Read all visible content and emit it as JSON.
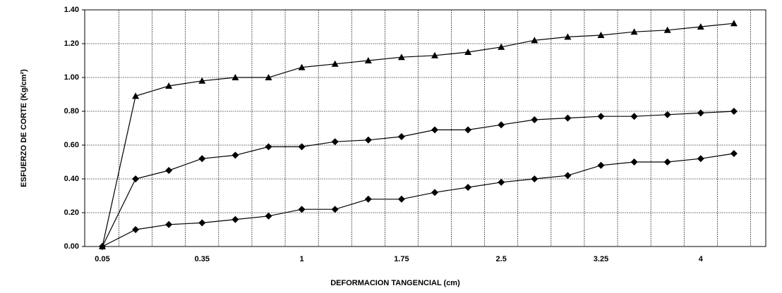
{
  "chart_data": {
    "type": "line",
    "x_label": "DEFORMACION TANGENCIAL  (cm)",
    "y_label": "ESFUERZO DE CORTE  (Kg/cm²)",
    "categories": [
      "0.05",
      null,
      null,
      "0.35",
      null,
      null,
      "1",
      null,
      null,
      "1.75",
      null,
      null,
      "2.5",
      null,
      null,
      "3.25",
      null,
      null,
      "4",
      null
    ],
    "series": [
      {
        "color": "#000000",
        "marker": "triangle",
        "values": [
          0,
          0.89,
          0.95,
          0.98,
          1.0,
          1.0,
          1.06,
          1.08,
          1.1,
          1.12,
          1.13,
          1.15,
          1.18,
          1.22,
          1.24,
          1.25,
          1.27,
          1.28,
          1.3,
          1.32
        ]
      },
      {
        "color": "#000000",
        "marker": "diamond",
        "values": [
          0,
          0.4,
          0.45,
          0.52,
          0.54,
          0.59,
          0.59,
          0.62,
          0.63,
          0.65,
          0.69,
          0.69,
          0.72,
          0.75,
          0.76,
          0.77,
          0.77,
          0.78,
          0.79,
          0.8
        ]
      },
      {
        "color": "#000000",
        "marker": "diamond",
        "values": [
          0,
          0.1,
          0.13,
          0.14,
          0.16,
          0.18,
          0.22,
          0.22,
          0.28,
          0.28,
          0.32,
          0.35,
          0.38,
          0.4,
          0.42,
          0.48,
          0.5,
          0.5,
          0.52,
          0.55
        ]
      }
    ],
    "ylim": [
      0,
      1.4
    ],
    "yticks": [
      {
        "value": 0,
        "label": "0.00"
      },
      {
        "value": 0.2,
        "label": "0.20"
      },
      {
        "value": 0.4,
        "label": "0.40"
      },
      {
        "value": 0.6,
        "label": "0.60"
      },
      {
        "value": 0.8,
        "label": "0.80"
      },
      {
        "value": 1.0,
        "label": "1.00"
      },
      {
        "value": 1.2,
        "label": "1.20"
      },
      {
        "value": 1.4,
        "label": "1.40"
      }
    ],
    "grid": true
  }
}
